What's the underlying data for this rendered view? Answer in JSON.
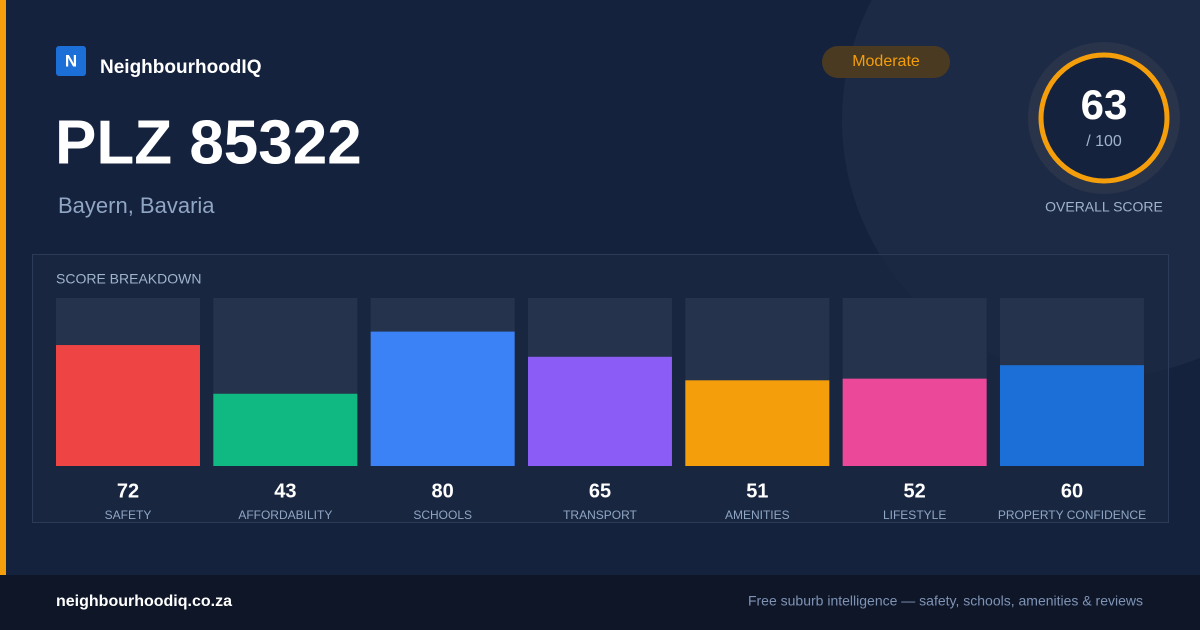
{
  "brand": "NeighbourhoodIQ",
  "logo_letter": "N",
  "badge": "Moderate",
  "title": "PLZ 85322",
  "subtitle": "Bayern, Bavaria",
  "score": {
    "value": 63,
    "out_of": "/ 100",
    "label": "OVERALL SCORE"
  },
  "breakdown": {
    "title": "SCORE BREAKDOWN",
    "ylim": [
      0,
      100
    ],
    "items": [
      {
        "label": "SAFETY",
        "value": 72,
        "color": "#ef4444"
      },
      {
        "label": "AFFORDABILITY",
        "value": 43,
        "color": "#10b981"
      },
      {
        "label": "SCHOOLS",
        "value": 80,
        "color": "#3b82f6"
      },
      {
        "label": "TRANSPORT",
        "value": 65,
        "color": "#8b5cf6"
      },
      {
        "label": "AMENITIES",
        "value": 51,
        "color": "#f59e0b"
      },
      {
        "label": "LIFESTYLE",
        "value": 52,
        "color": "#ec4899"
      },
      {
        "label": "PROPERTY CONFIDENCE",
        "value": 60,
        "color": "#1d6fd8"
      }
    ]
  },
  "footer": {
    "url": "neighbourhoodiq.co.za",
    "tagline": "Free suburb intelligence — safety, schools, amenities & reviews"
  }
}
